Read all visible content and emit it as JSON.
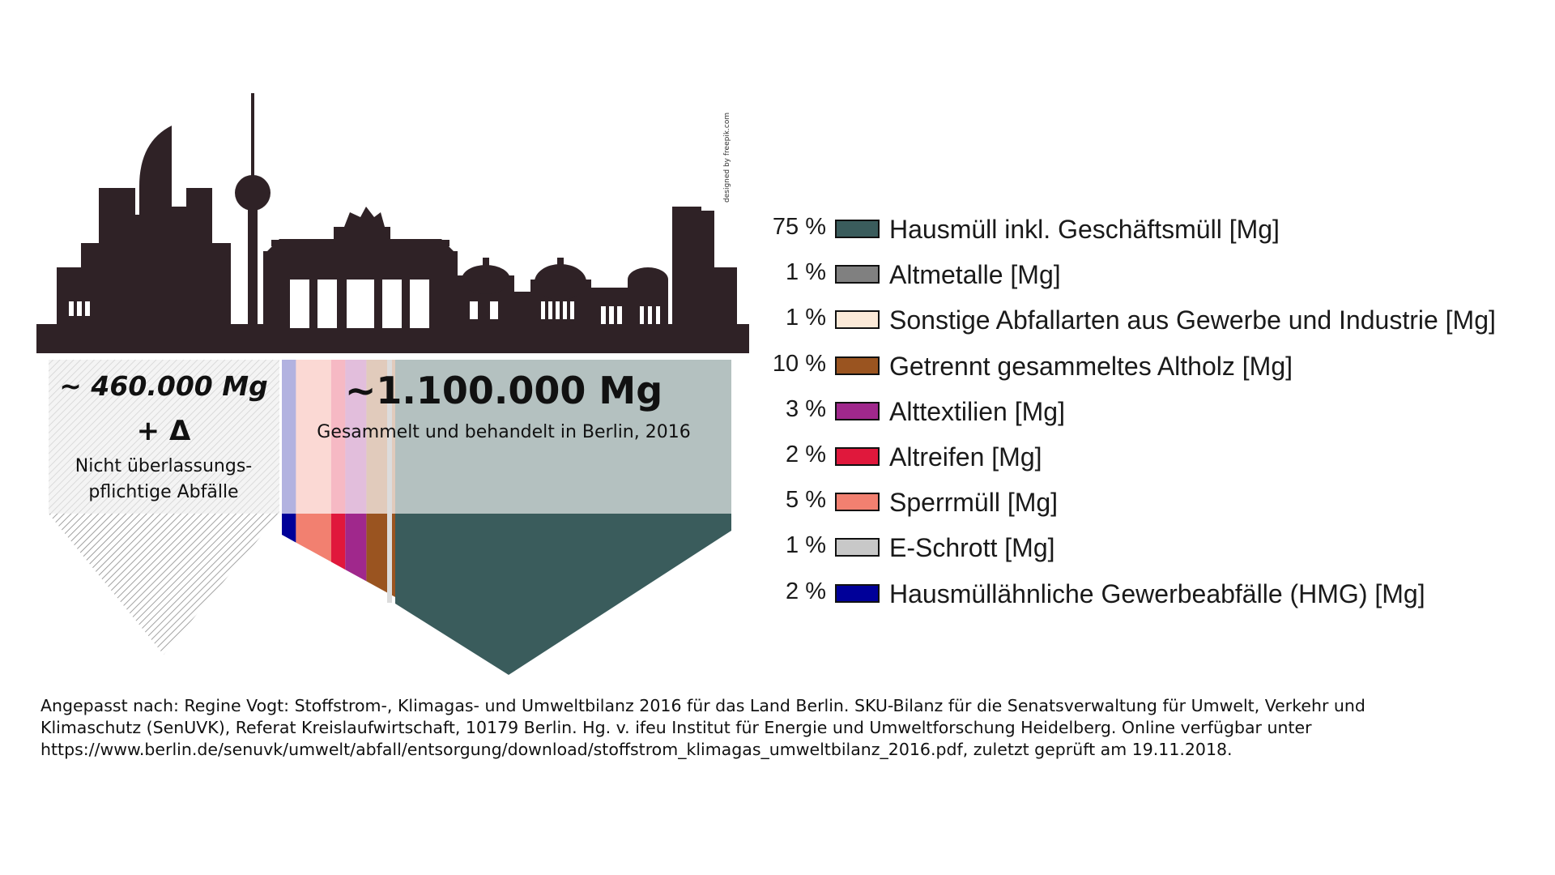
{
  "left_block": {
    "amount": "~ 460.000 Mg",
    "delta": "+ Δ",
    "caption_line1": "Nicht überlassungs-",
    "caption_line2": "pflichtige Abfälle"
  },
  "right_block": {
    "amount": "~1.100.000 Mg",
    "caption": "Gesammelt und behandelt in Berlin, 2016"
  },
  "credit": "designed by freepik.com",
  "legend": [
    {
      "pct": "75 %",
      "label": "Hausmüll inkl. Geschäftsmüll [Mg]",
      "color": "#3a5c5c",
      "value": 75
    },
    {
      "pct": "1 %",
      "label": "Altmetalle [Mg]",
      "color": "#808080",
      "value": 1
    },
    {
      "pct": "1 %",
      "label": "Sonstige Abfallarten aus Gewerbe und Industrie [Mg]",
      "color": "#fbe9d7",
      "value": 1
    },
    {
      "pct": "10 %",
      "label": "Getrennt gesammeltes Altholz [Mg]",
      "color": "#9a5420",
      "value": 10
    },
    {
      "pct": "3 %",
      "label": "Alttextilien [Mg]",
      "color": "#a0288c",
      "value": 3
    },
    {
      "pct": "2 %",
      "label": "Altreifen [Mg]",
      "color": "#e0183c",
      "value": 2
    },
    {
      "pct": "5 %",
      "label": "Sperrmüll [Mg]",
      "color": "#f28070",
      "value": 5
    },
    {
      "pct": "1 %",
      "label": "E-Schrott [Mg]",
      "color": "#c8c8c8",
      "value": 1
    },
    {
      "pct": "2 %",
      "label": "Hausmüllähnliche Gewerbeabfälle (HMG) [Mg]",
      "color": "#000099",
      "value": 2
    }
  ],
  "source": "Angepasst nach: Regine Vogt: Stoffstrom-, Klimagas- und Umweltbilanz 2016 für das Land Berlin. SKU-Bilanz für die Senatsverwaltung für Umwelt, Verkehr und Klimaschutz (SenUVK), Referat Kreislaufwirtschaft, 10179 Berlin. Hg. v. ifeu Institut für Energie und Umweltforschung Heidelberg. Online verfügbar unter https://www.berlin.de/senuvk/umwelt/abfall/entsorgung/download/stoffstrom_klimagas_umweltbilanz_2016.pdf, zuletzt geprüft am 19.11.2018."
}
